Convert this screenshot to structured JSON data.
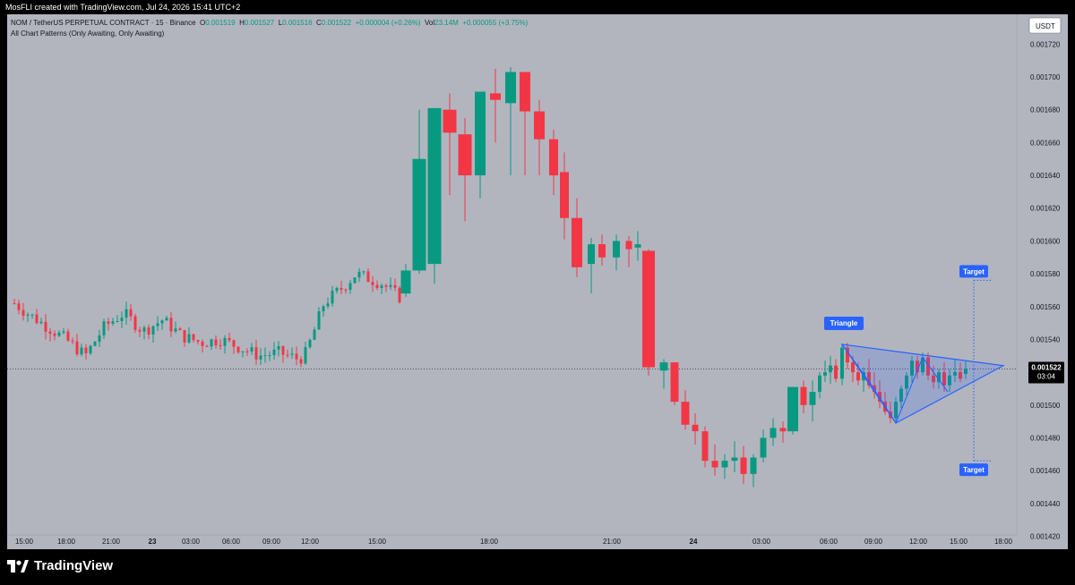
{
  "header": {
    "created_by": "MosFLI created with TradingView.com, Jul 24, 2026 15:41 UTC+2"
  },
  "legend": {
    "symbol": "NOM / TetherUS PERPETUAL CONTRACT · 15 · Binance",
    "open_label": "O",
    "open": "0.001519",
    "high_label": "H",
    "high": "0.001527",
    "low_label": "L",
    "low": "0.001516",
    "close_label": "C",
    "close": "0.001522",
    "change": "+0.000004 (+0.26%)",
    "vol_label": "Vol",
    "vol": "23.14M",
    "vol_change": "+0.000055 (+3.75%)",
    "indicator": "All Chart Patterns (Only Awaiting, Only Awaiting)"
  },
  "footer": {
    "brand": "TradingView"
  },
  "colors": {
    "up": "#089981",
    "down": "#f23645",
    "pattern": "#2962ff",
    "background": "#b2b5be"
  },
  "chart_data": {
    "type": "candlestick",
    "currency": "USDT",
    "ylim": [
      0.001412,
      0.001732
    ],
    "yticks": [
      "0.001720",
      "0.001700",
      "0.001680",
      "0.001660",
      "0.001640",
      "0.001620",
      "0.001600",
      "0.001580",
      "0.001560",
      "0.001540",
      "0.001520",
      "0.001500",
      "0.001480",
      "0.001460",
      "0.001440",
      "0.001420"
    ],
    "xticks": [
      "15:00",
      "18:00",
      "21:00",
      "23",
      "03:00",
      "06:00",
      "09:00",
      "12:00",
      "15:00",
      "18:00",
      "21:00",
      "24",
      "03:00",
      "06:00",
      "09:00",
      "12:00",
      "15:00",
      "18:00"
    ],
    "bold_xticks": [
      "23",
      "24"
    ],
    "current_price": "0.001522",
    "countdown": "03:04",
    "pattern": {
      "label": "Triangle",
      "apex_top": [
        [
          "Jul 24 06:45",
          0.001537
        ],
        [
          "Jul 24 16:45",
          0.001524
        ]
      ],
      "apex_bottom": [
        [
          "Jul 24 10:00",
          0.001489
        ],
        [
          "Jul 24 16:45",
          0.001524
        ]
      ]
    },
    "targets": [
      {
        "label": "Target",
        "value": 0.001576
      },
      {
        "label": "Target",
        "value": 0.001466
      }
    ],
    "ohlc_summary": [
      [
        "Jul 22 14:00",
        0.00156,
        0.00157,
        0.001555,
        0.001562
      ],
      [
        "Jul 22 21:00",
        0.001552,
        0.001556,
        0.001528,
        0.001545
      ],
      [
        "Jul 23 00:00",
        0.001548,
        0.001564,
        0.00154,
        0.001556
      ],
      [
        "Jul 23 06:00",
        0.001546,
        0.001552,
        0.00153,
        0.001538
      ],
      [
        "Jul 23 09:00",
        0.001538,
        0.001544,
        0.00153,
        0.001532
      ],
      [
        "Jul 23 12:00",
        0.001532,
        0.001584,
        0.00153,
        0.001578
      ],
      [
        "Jul 23 15:00",
        0.001584,
        0.001682,
        0.001582,
        0.001682
      ],
      [
        "Jul 23 16:00",
        0.001682,
        0.001688,
        0.00164,
        0.00165
      ],
      [
        "Jul 23 18:00",
        0.00165,
        0.001706,
        0.001644,
        0.001702
      ],
      [
        "Jul 23 19:00",
        0.001702,
        0.001702,
        0.00165,
        0.001675
      ],
      [
        "Jul 23 21:00",
        0.001598,
        0.001605,
        0.001565,
        0.001598
      ],
      [
        "Jul 23 22:00",
        0.001594,
        0.001594,
        0.001518,
        0.001522
      ],
      [
        "Jul 23 23:00",
        0.001522,
        0.001522,
        0.001508,
        0.00152
      ],
      [
        "Jul 24 01:00",
        0.001486,
        0.001492,
        0.001457,
        0.001462
      ],
      [
        "Jul 24 02:00",
        0.00146,
        0.001475,
        0.00145,
        0.001468
      ],
      [
        "Jul 24 03:00",
        0.001468,
        0.001492,
        0.001465,
        0.00149
      ],
      [
        "Jul 24 03:30",
        0.001488,
        0.00152,
        0.001486,
        0.001511
      ],
      [
        "Jul 24 06:30",
        0.001525,
        0.001535,
        0.001513,
        0.00152
      ],
      [
        "Jul 24 10:00",
        0.001492,
        0.001512,
        0.001489,
        0.00151
      ],
      [
        "Jul 24 11:30",
        0.00151,
        0.00153,
        0.001507,
        0.001524
      ],
      [
        "Jul 24 15:30",
        0.001519,
        0.001527,
        0.001516,
        0.001522
      ]
    ]
  }
}
